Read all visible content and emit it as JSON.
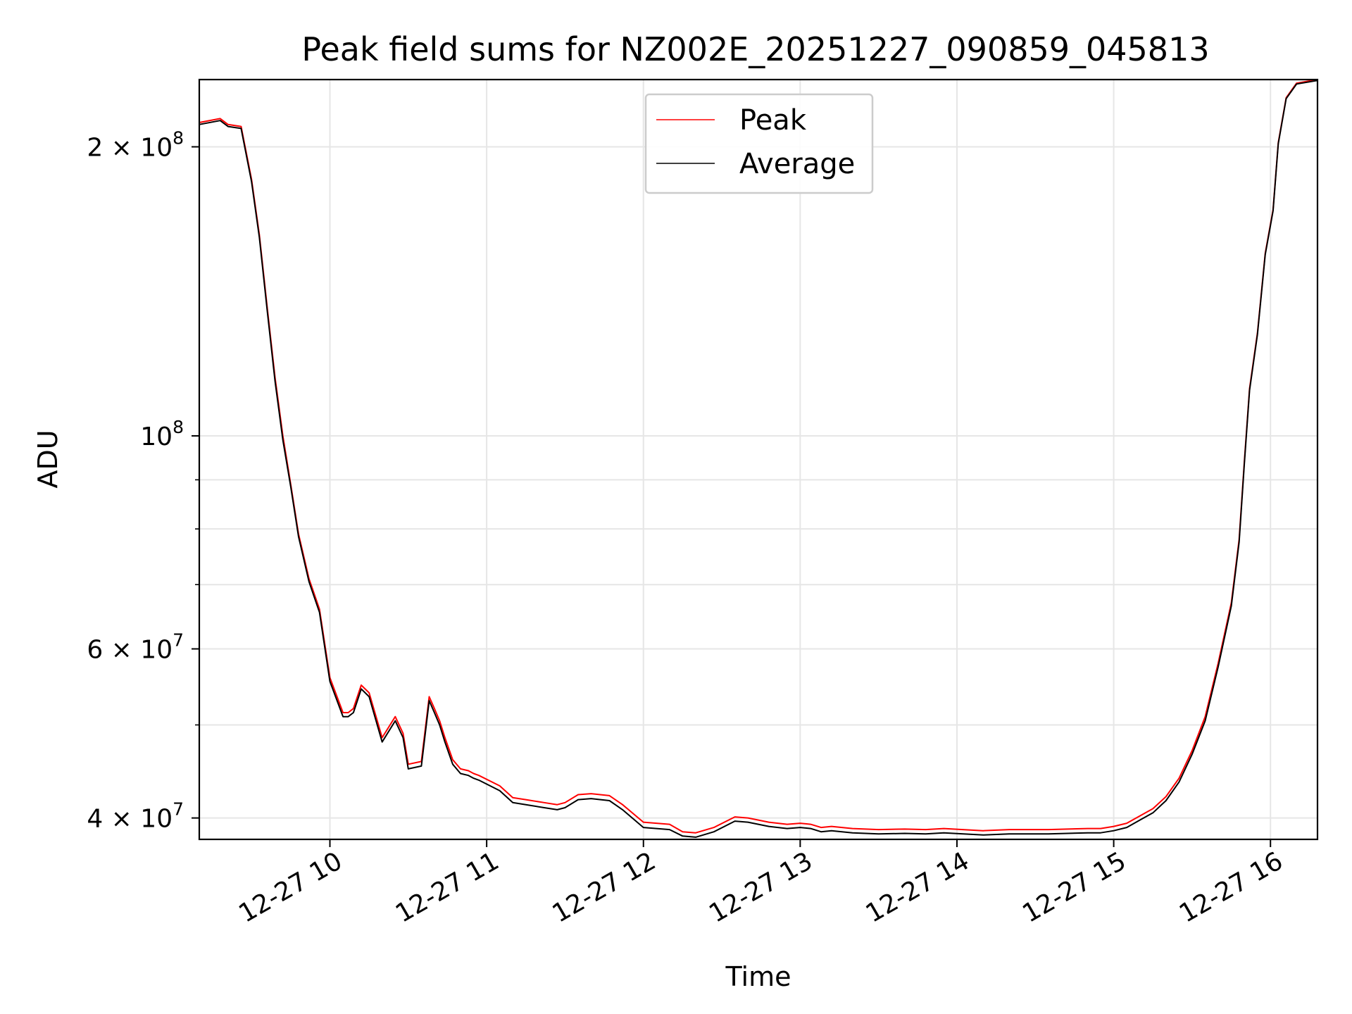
{
  "chart_data": {
    "type": "line",
    "title": "Peak field sums for NZ002E_20251227_090859_045813",
    "xlabel": "Time",
    "ylabel": "ADU",
    "yscale": "log",
    "xlim": [
      "2025-12-27 09:10",
      "2025-12-27 16:18"
    ],
    "ylim": [
      38000000,
      235000000
    ],
    "grid": true,
    "legend": {
      "placement": "upper-center",
      "entries": [
        "Peak",
        "Average"
      ]
    },
    "x_ticks": [
      "12-27 10",
      "12-27 11",
      "12-27 12",
      "12-27 13",
      "12-27 14",
      "12-27 15",
      "12-27 16"
    ],
    "x_tick_times": [
      "2025-12-27 10:00",
      "2025-12-27 11:00",
      "2025-12-27 12:00",
      "2025-12-27 13:00",
      "2025-12-27 14:00",
      "2025-12-27 15:00",
      "2025-12-27 16:00"
    ],
    "y_ticks": [
      {
        "value": 40000000,
        "mantissa": "4",
        "exp": "7"
      },
      {
        "value": 60000000,
        "mantissa": "6",
        "exp": "7"
      },
      {
        "value": 100000000,
        "mantissa": "",
        "exp": "8"
      },
      {
        "value": 200000000,
        "mantissa": "2",
        "exp": "8"
      }
    ],
    "y_minor_ticks": [
      50000000,
      70000000,
      80000000,
      90000000
    ],
    "series": [
      {
        "name": "Peak",
        "color": "#ff0000",
        "x": [
          "2025-12-27 09:10",
          "2025-12-27 09:18",
          "2025-12-27 09:21",
          "2025-12-27 09:26",
          "2025-12-27 09:30",
          "2025-12-27 09:33",
          "2025-12-27 09:36",
          "2025-12-27 09:39",
          "2025-12-27 09:42",
          "2025-12-27 09:45",
          "2025-12-27 09:48",
          "2025-12-27 09:52",
          "2025-12-27 09:56",
          "2025-12-27 10:00",
          "2025-12-27 10:05",
          "2025-12-27 10:07",
          "2025-12-27 10:09",
          "2025-12-27 10:12",
          "2025-12-27 10:15",
          "2025-12-27 10:20",
          "2025-12-27 10:25",
          "2025-12-27 10:28",
          "2025-12-27 10:30",
          "2025-12-27 10:35",
          "2025-12-27 10:38",
          "2025-12-27 10:40",
          "2025-12-27 10:42",
          "2025-12-27 10:44",
          "2025-12-27 10:47",
          "2025-12-27 10:50",
          "2025-12-27 10:53",
          "2025-12-27 10:55",
          "2025-12-27 10:57",
          "2025-12-27 11:05",
          "2025-12-27 11:10",
          "2025-12-27 11:15",
          "2025-12-27 11:22",
          "2025-12-27 11:27",
          "2025-12-27 11:30",
          "2025-12-27 11:35",
          "2025-12-27 11:40",
          "2025-12-27 11:47",
          "2025-12-27 11:52",
          "2025-12-27 12:00",
          "2025-12-27 12:10",
          "2025-12-27 12:15",
          "2025-12-27 12:20",
          "2025-12-27 12:27",
          "2025-12-27 12:35",
          "2025-12-27 12:40",
          "2025-12-27 12:48",
          "2025-12-27 12:55",
          "2025-12-27 13:00",
          "2025-12-27 13:04",
          "2025-12-27 13:08",
          "2025-12-27 13:12",
          "2025-12-27 13:20",
          "2025-12-27 13:30",
          "2025-12-27 13:40",
          "2025-12-27 13:48",
          "2025-12-27 13:55",
          "2025-12-27 14:10",
          "2025-12-27 14:20",
          "2025-12-27 14:35",
          "2025-12-27 14:50",
          "2025-12-27 14:55",
          "2025-12-27 15:00",
          "2025-12-27 15:05",
          "2025-12-27 15:10",
          "2025-12-27 15:15",
          "2025-12-27 15:20",
          "2025-12-27 15:25",
          "2025-12-27 15:30",
          "2025-12-27 15:35",
          "2025-12-27 15:40",
          "2025-12-27 15:45",
          "2025-12-27 15:48",
          "2025-12-27 15:50",
          "2025-12-27 15:52",
          "2025-12-27 15:55",
          "2025-12-27 15:58",
          "2025-12-27 16:01",
          "2025-12-27 16:03",
          "2025-12-27 16:06",
          "2025-12-27 16:10",
          "2025-12-27 16:18"
        ],
        "y": [
          212000000,
          214000000,
          211000000,
          210000000,
          185000000,
          162000000,
          136000000,
          115000000,
          100000000,
          89000000,
          79000000,
          71000000,
          66000000,
          56000000,
          51500000,
          51500000,
          52000000,
          55000000,
          54000000,
          48500000,
          51000000,
          49000000,
          45500000,
          45800000,
          53500000,
          52000000,
          50500000,
          48500000,
          46000000,
          45000000,
          44800000,
          44500000,
          44300000,
          43200000,
          42000000,
          41800000,
          41500000,
          41300000,
          41500000,
          42300000,
          42400000,
          42200000,
          41300000,
          39600000,
          39400000,
          38700000,
          38600000,
          39100000,
          40100000,
          40000000,
          39600000,
          39400000,
          39500000,
          39400000,
          39100000,
          39200000,
          39000000,
          38900000,
          38950000,
          38900000,
          39000000,
          38800000,
          38900000,
          38900000,
          39000000,
          39000000,
          39200000,
          39500000,
          40200000,
          40900000,
          42100000,
          44000000,
          47000000,
          51000000,
          58000000,
          67000000,
          78000000,
          94000000,
          112000000,
          128000000,
          155000000,
          172000000,
          202000000,
          225000000,
          233000000,
          235000000
        ]
      },
      {
        "name": "Average",
        "color": "#000000",
        "x": [
          "2025-12-27 09:10",
          "2025-12-27 09:18",
          "2025-12-27 09:21",
          "2025-12-27 09:26",
          "2025-12-27 09:30",
          "2025-12-27 09:33",
          "2025-12-27 09:36",
          "2025-12-27 09:39",
          "2025-12-27 09:42",
          "2025-12-27 09:45",
          "2025-12-27 09:48",
          "2025-12-27 09:52",
          "2025-12-27 09:56",
          "2025-12-27 10:00",
          "2025-12-27 10:05",
          "2025-12-27 10:07",
          "2025-12-27 10:09",
          "2025-12-27 10:12",
          "2025-12-27 10:15",
          "2025-12-27 10:20",
          "2025-12-27 10:25",
          "2025-12-27 10:28",
          "2025-12-27 10:30",
          "2025-12-27 10:35",
          "2025-12-27 10:38",
          "2025-12-27 10:40",
          "2025-12-27 10:42",
          "2025-12-27 10:44",
          "2025-12-27 10:47",
          "2025-12-27 10:50",
          "2025-12-27 10:53",
          "2025-12-27 10:55",
          "2025-12-27 10:57",
          "2025-12-27 11:05",
          "2025-12-27 11:10",
          "2025-12-27 11:15",
          "2025-12-27 11:22",
          "2025-12-27 11:27",
          "2025-12-27 11:30",
          "2025-12-27 11:35",
          "2025-12-27 11:40",
          "2025-12-27 11:47",
          "2025-12-27 11:52",
          "2025-12-27 12:00",
          "2025-12-27 12:10",
          "2025-12-27 12:15",
          "2025-12-27 12:20",
          "2025-12-27 12:27",
          "2025-12-27 12:35",
          "2025-12-27 12:40",
          "2025-12-27 12:48",
          "2025-12-27 12:55",
          "2025-12-27 13:00",
          "2025-12-27 13:04",
          "2025-12-27 13:08",
          "2025-12-27 13:12",
          "2025-12-27 13:20",
          "2025-12-27 13:30",
          "2025-12-27 13:40",
          "2025-12-27 13:48",
          "2025-12-27 13:55",
          "2025-12-27 14:10",
          "2025-12-27 14:20",
          "2025-12-27 14:35",
          "2025-12-27 14:50",
          "2025-12-27 14:55",
          "2025-12-27 15:00",
          "2025-12-27 15:05",
          "2025-12-27 15:10",
          "2025-12-27 15:15",
          "2025-12-27 15:20",
          "2025-12-27 15:25",
          "2025-12-27 15:30",
          "2025-12-27 15:35",
          "2025-12-27 15:40",
          "2025-12-27 15:45",
          "2025-12-27 15:48",
          "2025-12-27 15:50",
          "2025-12-27 15:52",
          "2025-12-27 15:55",
          "2025-12-27 15:58",
          "2025-12-27 16:01",
          "2025-12-27 16:03",
          "2025-12-27 16:06",
          "2025-12-27 16:10",
          "2025-12-27 16:18"
        ],
        "y": [
          211000000,
          213000000,
          210000000,
          209000000,
          184000000,
          161000000,
          135000000,
          114000000,
          99000000,
          88500000,
          78500000,
          70500000,
          65500000,
          55500000,
          51000000,
          51000000,
          51500000,
          54500000,
          53500000,
          48000000,
          50500000,
          48500000,
          45000000,
          45300000,
          53000000,
          51500000,
          50000000,
          48000000,
          45500000,
          44500000,
          44300000,
          44000000,
          43800000,
          42700000,
          41500000,
          41300000,
          41000000,
          40800000,
          41000000,
          41800000,
          41900000,
          41700000,
          40800000,
          39100000,
          38900000,
          38300000,
          38200000,
          38700000,
          39700000,
          39600000,
          39200000,
          39000000,
          39100000,
          39000000,
          38700000,
          38800000,
          38600000,
          38500000,
          38550000,
          38500000,
          38600000,
          38400000,
          38500000,
          38500000,
          38600000,
          38600000,
          38800000,
          39100000,
          39800000,
          40500000,
          41700000,
          43600000,
          46600000,
          50500000,
          57500000,
          66500000,
          77500000,
          93500000,
          111500000,
          127500000,
          154500000,
          171500000,
          201500000,
          224500000,
          232500000,
          234500000
        ]
      }
    ]
  }
}
